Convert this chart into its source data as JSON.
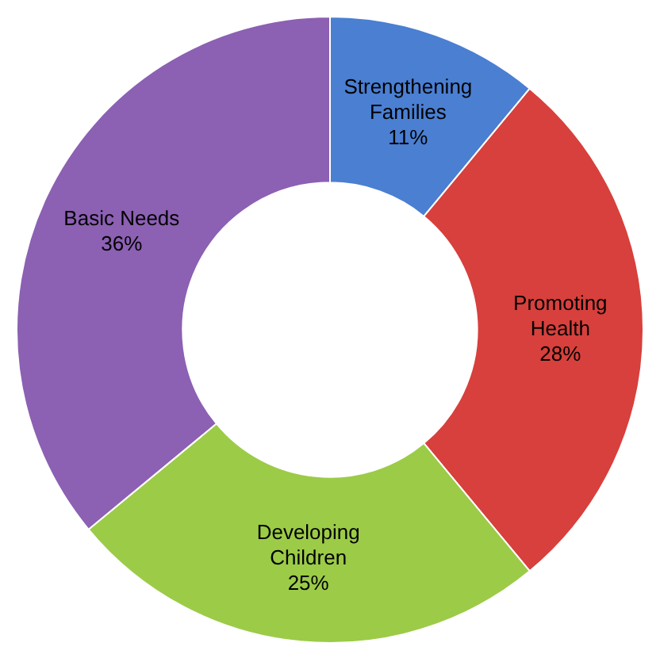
{
  "chart_data": {
    "type": "donut",
    "categories": [
      "Strengthening Families",
      "Promoting Health",
      "Developing Children",
      "Basic Needs"
    ],
    "values": [
      11,
      28,
      25,
      36
    ],
    "value_labels": [
      "11%",
      "28%",
      "25%",
      "36%"
    ],
    "colors": [
      "#4a7fd2",
      "#d7403c",
      "#9ccb48",
      "#8c60b3"
    ],
    "legend": false
  }
}
